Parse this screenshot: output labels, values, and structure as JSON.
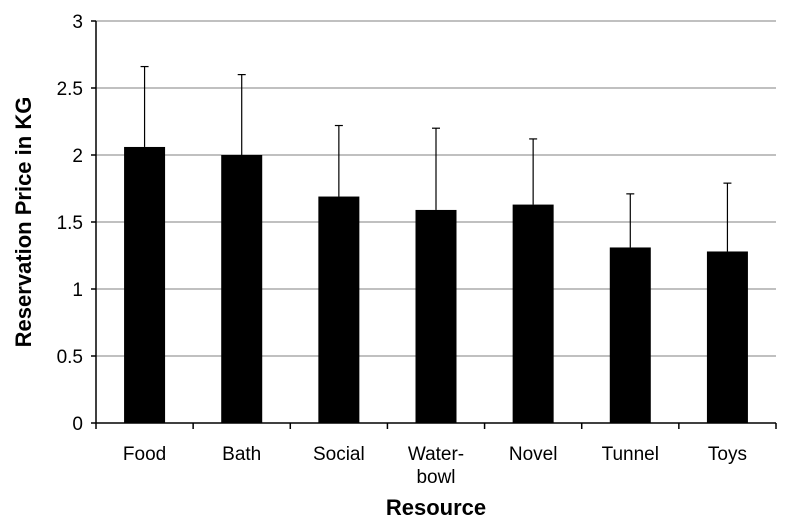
{
  "chart_data": {
    "type": "bar",
    "title": "",
    "xlabel": "Resource",
    "ylabel": "Reservation Price in KG",
    "categories": [
      "Food",
      "Bath",
      "Social",
      "Water-bowl",
      "Novel",
      "Tunnel",
      "Toys"
    ],
    "category_label_lines": [
      [
        "Food"
      ],
      [
        "Bath"
      ],
      [
        "Social"
      ],
      [
        "Water-",
        "bowl"
      ],
      [
        "Novel"
      ],
      [
        "Tunnel"
      ],
      [
        "Toys"
      ]
    ],
    "values": [
      2.06,
      2.0,
      1.69,
      1.59,
      1.63,
      1.31,
      1.28
    ],
    "error_upper": [
      0.6,
      0.6,
      0.53,
      0.61,
      0.49,
      0.4,
      0.51
    ],
    "ylim": [
      0,
      3
    ],
    "yticks": [
      0,
      0.5,
      1,
      1.5,
      2,
      2.5,
      3
    ],
    "ytick_labels": [
      "0",
      "0.5",
      "1",
      "1.5",
      "2",
      "2.5",
      "3"
    ],
    "grid": true,
    "legend": "none",
    "colors": {
      "bar": "#000000",
      "grid": "#808080",
      "axis": "#000000",
      "background": "#ffffff"
    }
  }
}
